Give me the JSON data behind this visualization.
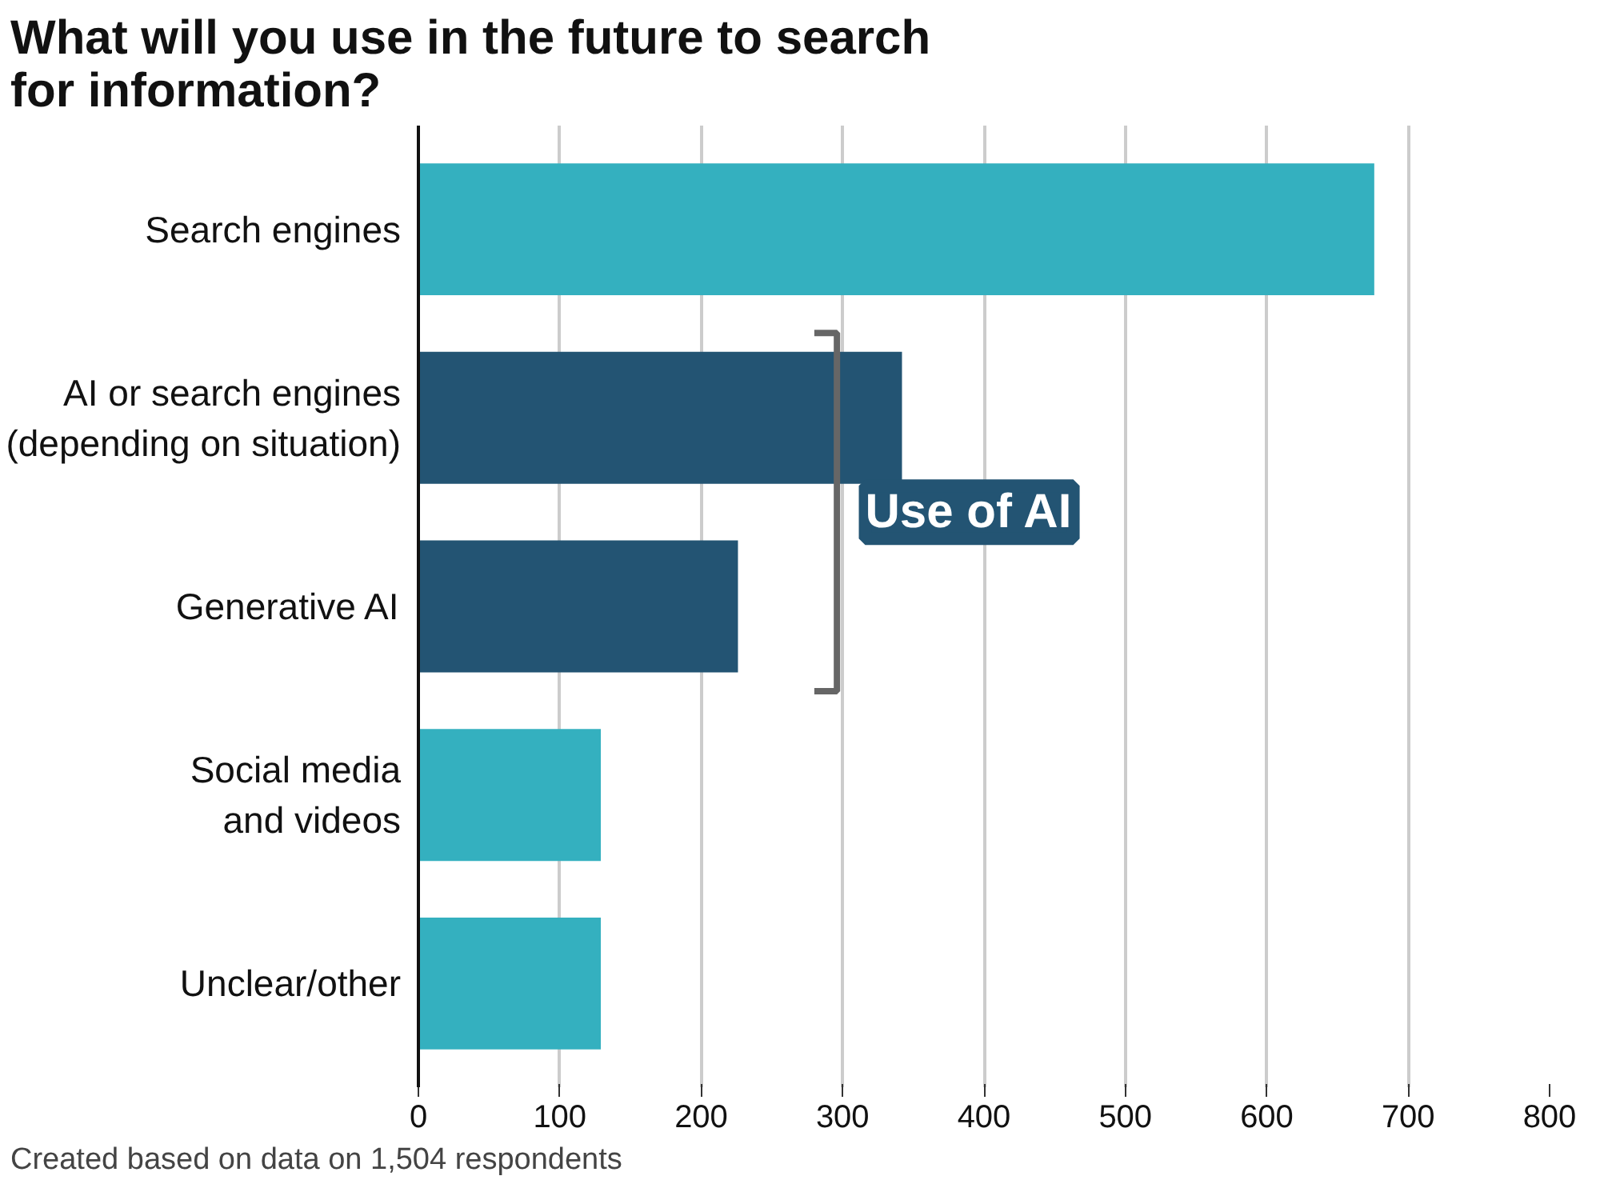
{
  "chart_data": {
    "type": "bar",
    "orientation": "horizontal",
    "title": "What will you use in the future to search for information?",
    "categories": [
      "Search engines",
      "AI or search engines\n(depending on situation)",
      "Generative AI",
      "Social media\nand videos",
      "Unclear/other"
    ],
    "values": [
      676,
      342,
      226,
      129,
      129
    ],
    "colors": [
      "#34b0bf",
      "#235473",
      "#235473",
      "#34b0bf",
      "#34b0bf"
    ],
    "xlim": [
      0,
      800
    ],
    "xticks": [
      0,
      100,
      200,
      300,
      400,
      500,
      600,
      700,
      800
    ],
    "grid": "x",
    "annotations": [
      "Use of AI",
      "Created based on data on 1,504 respondents"
    ]
  }
}
